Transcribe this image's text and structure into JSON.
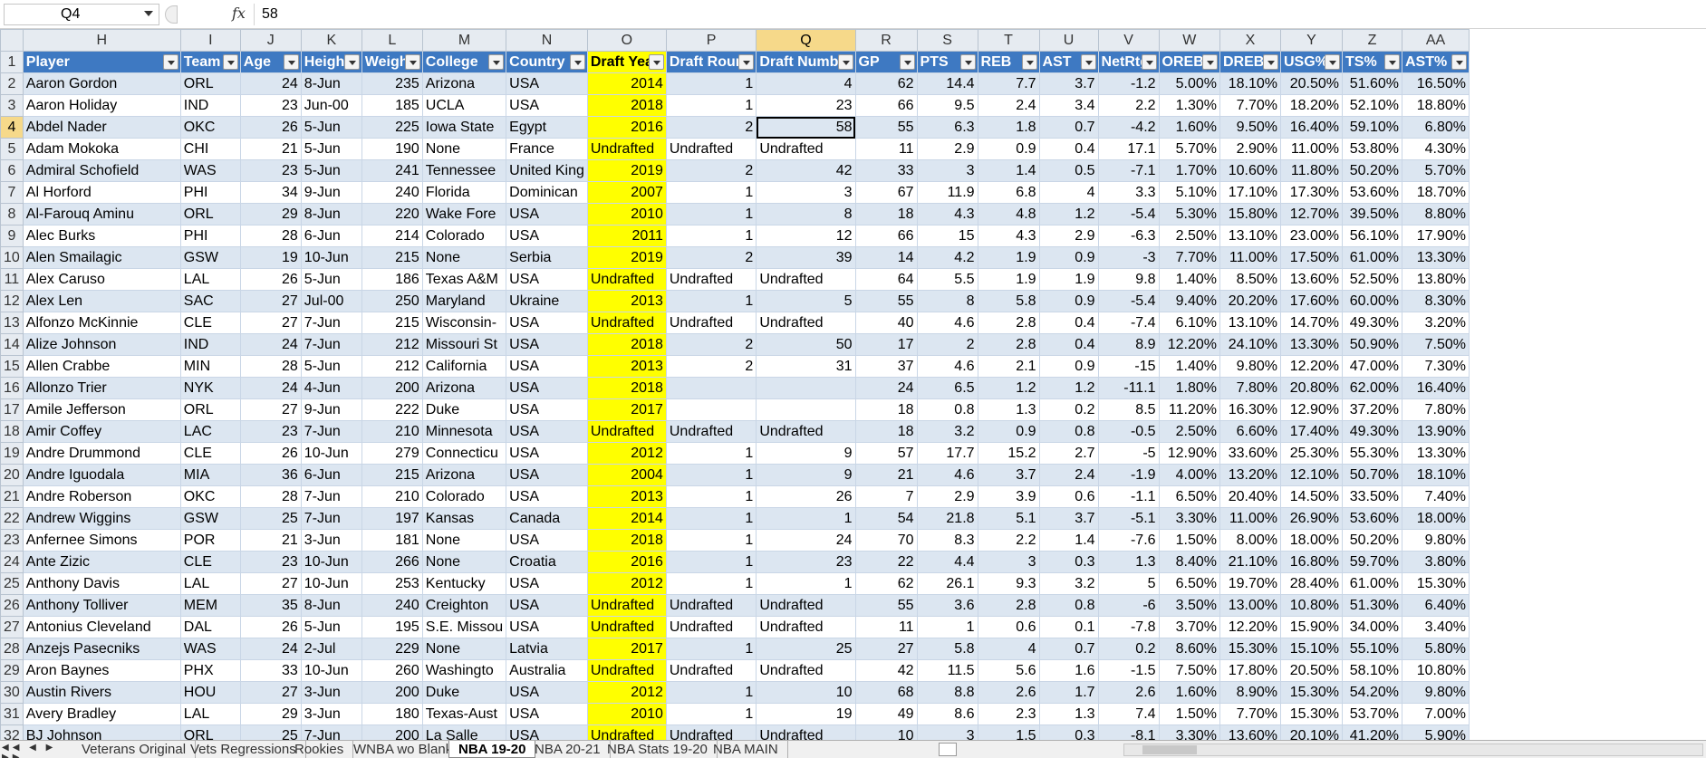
{
  "namebox": {
    "value": "Q4"
  },
  "formula": {
    "fx": "fx",
    "value": "58"
  },
  "columns": [
    "H",
    "I",
    "J",
    "K",
    "L",
    "M",
    "N",
    "O",
    "P",
    "Q",
    "R",
    "S",
    "T",
    "U",
    "V",
    "W",
    "X",
    "Y",
    "Z",
    "AA"
  ],
  "selected_column": "Q",
  "selected_row": "4",
  "headers": [
    "Player",
    "Team",
    "Age",
    "Height",
    "Weight",
    "College",
    "Country",
    "Draft Year",
    "Draft Round",
    "Draft Number",
    "GP",
    "PTS",
    "REB",
    "AST",
    "NetRtg",
    "OREB%",
    "DREB%",
    "USG%",
    "TS%",
    "AST%"
  ],
  "rows": [
    {
      "n": "2",
      "c": [
        "Aaron Gordon",
        "ORL",
        "24",
        "8-Jun",
        "235",
        "Arizona",
        "USA",
        "2014",
        "1",
        "4",
        "62",
        "14.4",
        "7.7",
        "3.7",
        "-1.2",
        "5.00%",
        "18.10%",
        "20.50%",
        "51.60%",
        "16.50%"
      ]
    },
    {
      "n": "3",
      "c": [
        "Aaron Holiday",
        "IND",
        "23",
        "Jun-00",
        "185",
        "UCLA",
        "USA",
        "2018",
        "1",
        "23",
        "66",
        "9.5",
        "2.4",
        "3.4",
        "2.2",
        "1.30%",
        "7.70%",
        "18.20%",
        "52.10%",
        "18.80%"
      ]
    },
    {
      "n": "4",
      "c": [
        "Abdel Nader",
        "OKC",
        "26",
        "5-Jun",
        "225",
        "Iowa State",
        "Egypt",
        "2016",
        "2",
        "58",
        "55",
        "6.3",
        "1.8",
        "0.7",
        "-4.2",
        "1.60%",
        "9.50%",
        "16.40%",
        "59.10%",
        "6.80%"
      ]
    },
    {
      "n": "5",
      "c": [
        "Adam Mokoka",
        "CHI",
        "21",
        "5-Jun",
        "190",
        "None",
        "France",
        "Undrafted",
        "Undrafted",
        "Undrafted",
        "11",
        "2.9",
        "0.9",
        "0.4",
        "17.1",
        "5.70%",
        "2.90%",
        "11.00%",
        "53.80%",
        "4.30%"
      ]
    },
    {
      "n": "6",
      "c": [
        "Admiral Schofield",
        "WAS",
        "23",
        "5-Jun",
        "241",
        "Tennessee",
        "United King",
        "2019",
        "2",
        "42",
        "33",
        "3",
        "1.4",
        "0.5",
        "-7.1",
        "1.70%",
        "10.60%",
        "11.80%",
        "50.20%",
        "5.70%"
      ]
    },
    {
      "n": "7",
      "c": [
        "Al Horford",
        "PHI",
        "34",
        "9-Jun",
        "240",
        "Florida",
        "Dominican",
        "2007",
        "1",
        "3",
        "67",
        "11.9",
        "6.8",
        "4",
        "3.3",
        "5.10%",
        "17.10%",
        "17.30%",
        "53.60%",
        "18.70%"
      ]
    },
    {
      "n": "8",
      "c": [
        "Al-Farouq Aminu",
        "ORL",
        "29",
        "8-Jun",
        "220",
        "Wake Fore",
        "USA",
        "2010",
        "1",
        "8",
        "18",
        "4.3",
        "4.8",
        "1.2",
        "-5.4",
        "5.30%",
        "15.80%",
        "12.70%",
        "39.50%",
        "8.80%"
      ]
    },
    {
      "n": "9",
      "c": [
        "Alec Burks",
        "PHI",
        "28",
        "6-Jun",
        "214",
        "Colorado",
        "USA",
        "2011",
        "1",
        "12",
        "66",
        "15",
        "4.3",
        "2.9",
        "-6.3",
        "2.50%",
        "13.10%",
        "23.00%",
        "56.10%",
        "17.90%"
      ]
    },
    {
      "n": "10",
      "c": [
        "Alen Smailagic",
        "GSW",
        "19",
        "10-Jun",
        "215",
        "None",
        "Serbia",
        "2019",
        "2",
        "39",
        "14",
        "4.2",
        "1.9",
        "0.9",
        "-3",
        "7.70%",
        "11.00%",
        "17.50%",
        "61.00%",
        "13.30%"
      ]
    },
    {
      "n": "11",
      "c": [
        "Alex Caruso",
        "LAL",
        "26",
        "5-Jun",
        "186",
        "Texas A&M",
        "USA",
        "Undrafted",
        "Undrafted",
        "Undrafted",
        "64",
        "5.5",
        "1.9",
        "1.9",
        "9.8",
        "1.40%",
        "8.50%",
        "13.60%",
        "52.50%",
        "13.80%"
      ]
    },
    {
      "n": "12",
      "c": [
        "Alex Len",
        "SAC",
        "27",
        "Jul-00",
        "250",
        "Maryland",
        "Ukraine",
        "2013",
        "1",
        "5",
        "55",
        "8",
        "5.8",
        "0.9",
        "-5.4",
        "9.40%",
        "20.20%",
        "17.60%",
        "60.00%",
        "8.30%"
      ]
    },
    {
      "n": "13",
      "c": [
        "Alfonzo McKinnie",
        "CLE",
        "27",
        "7-Jun",
        "215",
        "Wisconsin-",
        "USA",
        "Undrafted",
        "Undrafted",
        "Undrafted",
        "40",
        "4.6",
        "2.8",
        "0.4",
        "-7.4",
        "6.10%",
        "13.10%",
        "14.70%",
        "49.30%",
        "3.20%"
      ]
    },
    {
      "n": "14",
      "c": [
        "Alize Johnson",
        "IND",
        "24",
        "7-Jun",
        "212",
        "Missouri St",
        "USA",
        "2018",
        "2",
        "50",
        "17",
        "2",
        "2.8",
        "0.4",
        "8.9",
        "12.20%",
        "24.10%",
        "13.30%",
        "50.90%",
        "7.50%"
      ]
    },
    {
      "n": "15",
      "c": [
        "Allen Crabbe",
        "MIN",
        "28",
        "5-Jun",
        "212",
        "California",
        "USA",
        "2013",
        "2",
        "31",
        "37",
        "4.6",
        "2.1",
        "0.9",
        "-15",
        "1.40%",
        "9.80%",
        "12.20%",
        "47.00%",
        "7.30%"
      ]
    },
    {
      "n": "16",
      "c": [
        "Allonzo Trier",
        "NYK",
        "24",
        "4-Jun",
        "200",
        "Arizona",
        "USA",
        "2018",
        "",
        "",
        "24",
        "6.5",
        "1.2",
        "1.2",
        "-11.1",
        "1.80%",
        "7.80%",
        "20.80%",
        "62.00%",
        "16.40%"
      ]
    },
    {
      "n": "17",
      "c": [
        "Amile Jefferson",
        "ORL",
        "27",
        "9-Jun",
        "222",
        "Duke",
        "USA",
        "2017",
        "",
        "",
        "18",
        "0.8",
        "1.3",
        "0.2",
        "8.5",
        "11.20%",
        "16.30%",
        "12.90%",
        "37.20%",
        "7.80%"
      ]
    },
    {
      "n": "18",
      "c": [
        "Amir Coffey",
        "LAC",
        "23",
        "7-Jun",
        "210",
        "Minnesota",
        "USA",
        "Undrafted",
        "Undrafted",
        "Undrafted",
        "18",
        "3.2",
        "0.9",
        "0.8",
        "-0.5",
        "2.50%",
        "6.60%",
        "17.40%",
        "49.30%",
        "13.90%"
      ]
    },
    {
      "n": "19",
      "c": [
        "Andre Drummond",
        "CLE",
        "26",
        "10-Jun",
        "279",
        "Connecticu",
        "USA",
        "2012",
        "1",
        "9",
        "57",
        "17.7",
        "15.2",
        "2.7",
        "-5",
        "12.90%",
        "33.60%",
        "25.30%",
        "55.30%",
        "13.30%"
      ]
    },
    {
      "n": "20",
      "c": [
        "Andre Iguodala",
        "MIA",
        "36",
        "6-Jun",
        "215",
        "Arizona",
        "USA",
        "2004",
        "1",
        "9",
        "21",
        "4.6",
        "3.7",
        "2.4",
        "-1.9",
        "4.00%",
        "13.20%",
        "12.10%",
        "50.70%",
        "18.10%"
      ]
    },
    {
      "n": "21",
      "c": [
        "Andre Roberson",
        "OKC",
        "28",
        "7-Jun",
        "210",
        "Colorado",
        "USA",
        "2013",
        "1",
        "26",
        "7",
        "2.9",
        "3.9",
        "0.6",
        "-1.1",
        "6.50%",
        "20.40%",
        "14.50%",
        "33.50%",
        "7.40%"
      ]
    },
    {
      "n": "22",
      "c": [
        "Andrew Wiggins",
        "GSW",
        "25",
        "7-Jun",
        "197",
        "Kansas",
        "Canada",
        "2014",
        "1",
        "1",
        "54",
        "21.8",
        "5.1",
        "3.7",
        "-5.1",
        "3.30%",
        "11.00%",
        "26.90%",
        "53.60%",
        "18.00%"
      ]
    },
    {
      "n": "23",
      "c": [
        "Anfernee Simons",
        "POR",
        "21",
        "3-Jun",
        "181",
        "None",
        "USA",
        "2018",
        "1",
        "24",
        "70",
        "8.3",
        "2.2",
        "1.4",
        "-7.6",
        "1.50%",
        "8.00%",
        "18.00%",
        "50.20%",
        "9.80%"
      ]
    },
    {
      "n": "24",
      "c": [
        "Ante Zizic",
        "CLE",
        "23",
        "10-Jun",
        "266",
        "None",
        "Croatia",
        "2016",
        "1",
        "23",
        "22",
        "4.4",
        "3",
        "0.3",
        "1.3",
        "8.40%",
        "21.10%",
        "16.80%",
        "59.70%",
        "3.80%"
      ]
    },
    {
      "n": "25",
      "c": [
        "Anthony Davis",
        "LAL",
        "27",
        "10-Jun",
        "253",
        "Kentucky",
        "USA",
        "2012",
        "1",
        "1",
        "62",
        "26.1",
        "9.3",
        "3.2",
        "5",
        "6.50%",
        "19.70%",
        "28.40%",
        "61.00%",
        "15.30%"
      ]
    },
    {
      "n": "26",
      "c": [
        "Anthony Tolliver",
        "MEM",
        "35",
        "8-Jun",
        "240",
        "Creighton",
        "USA",
        "Undrafted",
        "Undrafted",
        "Undrafted",
        "55",
        "3.6",
        "2.8",
        "0.8",
        "-6",
        "3.50%",
        "13.00%",
        "10.80%",
        "51.30%",
        "6.40%"
      ]
    },
    {
      "n": "27",
      "c": [
        "Antonius Cleveland",
        "DAL",
        "26",
        "5-Jun",
        "195",
        "S.E. Missou",
        "USA",
        "Undrafted",
        "Undrafted",
        "Undrafted",
        "11",
        "1",
        "0.6",
        "0.1",
        "-7.8",
        "3.70%",
        "12.20%",
        "15.90%",
        "34.00%",
        "3.40%"
      ]
    },
    {
      "n": "28",
      "c": [
        "Anzejs Pasecniks",
        "WAS",
        "24",
        "2-Jul",
        "229",
        "None",
        "Latvia",
        "2017",
        "1",
        "25",
        "27",
        "5.8",
        "4",
        "0.7",
        "0.2",
        "8.60%",
        "15.30%",
        "15.10%",
        "55.10%",
        "5.80%"
      ]
    },
    {
      "n": "29",
      "c": [
        "Aron Baynes",
        "PHX",
        "33",
        "10-Jun",
        "260",
        "Washingto",
        "Australia",
        "Undrafted",
        "Undrafted",
        "Undrafted",
        "42",
        "11.5",
        "5.6",
        "1.6",
        "-1.5",
        "7.50%",
        "17.80%",
        "20.50%",
        "58.10%",
        "10.80%"
      ]
    },
    {
      "n": "30",
      "c": [
        "Austin Rivers",
        "HOU",
        "27",
        "3-Jun",
        "200",
        "Duke",
        "USA",
        "2012",
        "1",
        "10",
        "68",
        "8.8",
        "2.6",
        "1.7",
        "2.6",
        "1.60%",
        "8.90%",
        "15.30%",
        "54.20%",
        "9.80%"
      ]
    },
    {
      "n": "31",
      "c": [
        "Avery Bradley",
        "LAL",
        "29",
        "3-Jun",
        "180",
        "Texas-Aust",
        "USA",
        "2010",
        "1",
        "19",
        "49",
        "8.6",
        "2.3",
        "1.3",
        "7.4",
        "1.50%",
        "7.70%",
        "15.30%",
        "53.70%",
        "7.00%"
      ]
    },
    {
      "n": "32",
      "c": [
        "BJ Johnson",
        "ORL",
        "25",
        "7-Jun",
        "200",
        "La Salle",
        "USA",
        "Undrafted",
        "Undrafted",
        "Undrafted",
        "10",
        "3",
        "1.5",
        "0.3",
        "-8.1",
        "3.30%",
        "13.60%",
        "20.10%",
        "41.20%",
        "5.90%"
      ]
    }
  ],
  "sheet_tabs": [
    "Veterans Original",
    "Vets Regressions",
    "Rookies",
    "WNBA wo Blanks",
    "NBA 19-20",
    "NBA 20-21",
    "NBA Stats 19-20",
    "NBA MAIN"
  ],
  "active_tab": "NBA 19-20",
  "tab_nav": "◀◀ ◀ ▶ ▶▶"
}
